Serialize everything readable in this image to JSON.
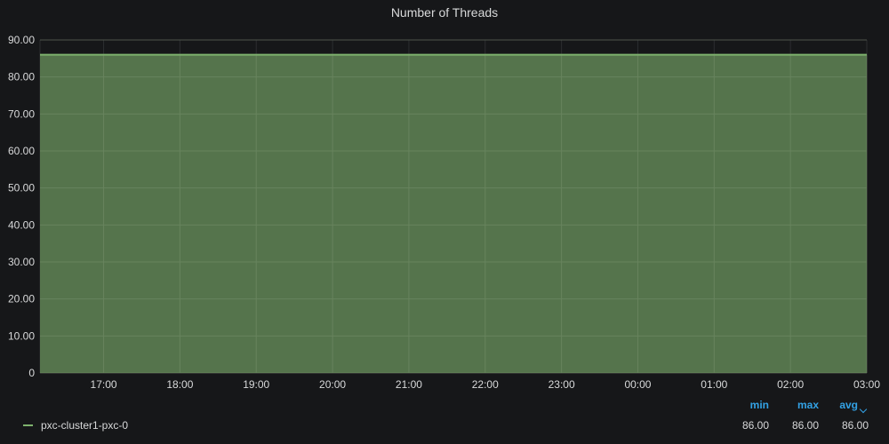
{
  "panel": {
    "title": "Number of Threads"
  },
  "colors": {
    "background": "#161719",
    "grid": "#2c2d30",
    "series_line": "#7eb26d",
    "series_fill": "#55744c",
    "legend_header": "#33a2e5",
    "text": "#d8d9da"
  },
  "chart_data": {
    "type": "area",
    "title": "Number of Threads",
    "xlabel": "",
    "ylabel": "",
    "ylim": [
      0,
      90
    ],
    "y_ticks": [
      "0",
      "10.00",
      "20.00",
      "30.00",
      "40.00",
      "50.00",
      "60.00",
      "70.00",
      "80.00",
      "90.00"
    ],
    "x_ticks": [
      "17:00",
      "18:00",
      "19:00",
      "20:00",
      "21:00",
      "22:00",
      "23:00",
      "00:00",
      "01:00",
      "02:00",
      "03:00"
    ],
    "x_range": [
      "16:10",
      "03:00"
    ],
    "grid": true,
    "legend_position": "bottom",
    "series": [
      {
        "name": "pxc-cluster1-pxc-0",
        "x": [
          "16:10",
          "17:00",
          "18:00",
          "19:00",
          "20:00",
          "21:00",
          "22:00",
          "23:00",
          "00:00",
          "01:00",
          "02:00",
          "03:00"
        ],
        "values": [
          86,
          86,
          86,
          86,
          86,
          86,
          86,
          86,
          86,
          86,
          86,
          86
        ]
      }
    ]
  },
  "legend": {
    "headers": {
      "min": "min",
      "max": "max",
      "avg": "avg"
    },
    "sort_icon": "chevron-down-icon",
    "rows": [
      {
        "name": "pxc-cluster1-pxc-0",
        "min": "86.00",
        "max": "86.00",
        "avg": "86.00"
      }
    ]
  }
}
